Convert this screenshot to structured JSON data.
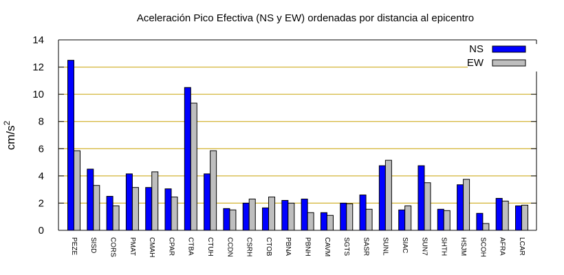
{
  "chart_data": {
    "type": "bar",
    "title": "Aceleración Pico Efectiva (NS y EW) ordenadas por distancia al epicentro",
    "xlabel": "",
    "ylabel": "cm/s",
    "ylabel_superscript": "2",
    "ylim": [
      0,
      14
    ],
    "yticks": [
      "0",
      "2",
      "4",
      "6",
      "8",
      "10",
      "12",
      "14"
    ],
    "grid": "horizontal",
    "grid_color": "#c8a000",
    "legend_position": "top-right",
    "categories": [
      "PEZE",
      "SISD",
      "CORS",
      "PMAT",
      "CMAH",
      "CPAR",
      "CTBA",
      "CTUH",
      "CCDN",
      "CSRH",
      "CTOB",
      "PBNA",
      "PBNH",
      "CAVM",
      "SGTS",
      "SASR",
      "SUNL",
      "SIAC",
      "SUN7",
      "SHTH",
      "HSJM",
      "SCOH",
      "AFRA",
      "LCAR"
    ],
    "series": [
      {
        "name": "NS",
        "color": "#0000ff",
        "values": [
          12.5,
          4.5,
          2.5,
          4.15,
          3.15,
          3.05,
          10.5,
          4.15,
          1.6,
          2.0,
          1.65,
          2.2,
          2.3,
          1.3,
          2.0,
          2.6,
          4.75,
          1.5,
          4.75,
          1.55,
          3.35,
          1.25,
          2.35,
          1.8
        ]
      },
      {
        "name": "EW",
        "color": "#bebebe",
        "values": [
          5.85,
          3.3,
          1.8,
          3.15,
          4.3,
          2.45,
          9.35,
          5.85,
          1.5,
          2.3,
          2.45,
          2.0,
          1.3,
          1.1,
          1.95,
          1.55,
          5.15,
          1.8,
          3.5,
          1.45,
          3.75,
          0.5,
          2.15,
          1.85
        ]
      }
    ]
  }
}
